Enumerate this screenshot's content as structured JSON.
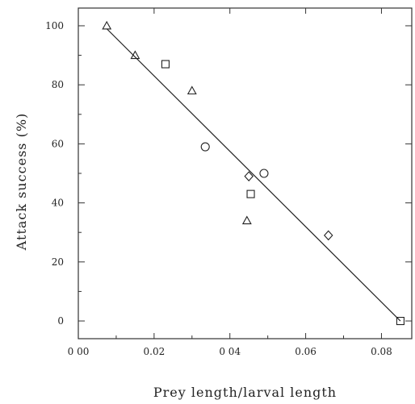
{
  "chart_data": {
    "type": "scatter",
    "title": "",
    "xlabel": "Prey length/larval length",
    "ylabel": "Attack success (%)",
    "xlim": [
      0.0,
      0.088
    ],
    "ylim": [
      -6,
      106
    ],
    "x_ticks": [
      0.0,
      0.02,
      0.04,
      0.06,
      0.08
    ],
    "x_tick_labels": [
      "0 00",
      "0.02",
      "0 04",
      "0.06",
      "0.08"
    ],
    "y_ticks": [
      0,
      20,
      40,
      60,
      80,
      100
    ],
    "y_tick_labels": [
      "0",
      "20",
      "40",
      "60",
      "80",
      "100"
    ],
    "grid": false,
    "series": [
      {
        "marker": "triangle",
        "points": [
          [
            0.0075,
            100
          ],
          [
            0.015,
            90
          ],
          [
            0.03,
            78
          ],
          [
            0.0445,
            34
          ]
        ]
      },
      {
        "marker": "square",
        "points": [
          [
            0.023,
            87
          ],
          [
            0.0455,
            43
          ],
          [
            0.085,
            0
          ]
        ]
      },
      {
        "marker": "circle",
        "points": [
          [
            0.0335,
            59
          ],
          [
            0.049,
            50
          ]
        ]
      },
      {
        "marker": "diamond",
        "points": [
          [
            0.045,
            49
          ],
          [
            0.066,
            29
          ]
        ]
      }
    ],
    "fit_line": {
      "x": [
        0.0075,
        0.085
      ],
      "y": [
        99,
        0
      ]
    }
  }
}
